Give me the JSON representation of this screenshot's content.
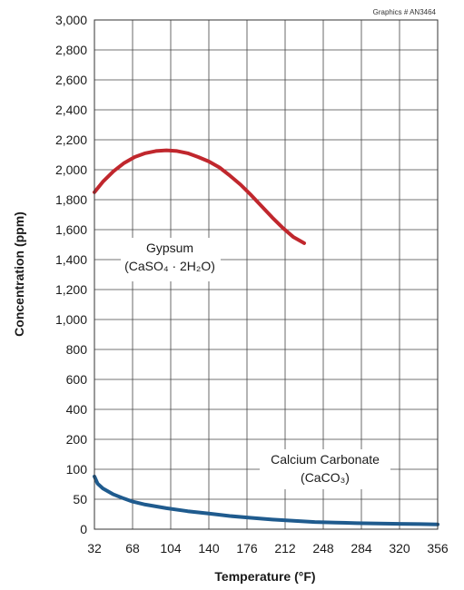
{
  "chart_data": {
    "type": "line",
    "graphic_id": "Graphics # AN3464",
    "xlabel": "Temperature (°F)",
    "ylabel": "Concentration (ppm)",
    "x_ticks": [
      32,
      68,
      104,
      140,
      176,
      212,
      248,
      284,
      320,
      356
    ],
    "y_ticks": [
      0,
      50,
      100,
      200,
      400,
      600,
      800,
      1000,
      1200,
      1400,
      1600,
      1800,
      2000,
      2200,
      2400,
      2600,
      2800,
      3000
    ],
    "y_tick_labels": [
      "0",
      "50",
      "100",
      "200",
      "400",
      "600",
      "800",
      "1,000",
      "1,200",
      "1,400",
      "1,600",
      "1,800",
      "2,000",
      "2,200",
      "2,400",
      "2,600",
      "2,800",
      "3,000"
    ],
    "xlim": [
      32,
      356
    ],
    "ylim": [
      0,
      3000
    ],
    "grid": true,
    "colors": {
      "gypsum": "#c0272d",
      "calcium_carbonate": "#1f5b8e"
    },
    "series": [
      {
        "key": "gypsum",
        "label_lines": [
          "Gypsum",
          "(CaSO₄ · 2H₂O)"
        ],
        "x": [
          32,
          40,
          50,
          60,
          70,
          80,
          90,
          100,
          110,
          120,
          130,
          140,
          150,
          160,
          170,
          180,
          190,
          200,
          210,
          220,
          230
        ],
        "y": [
          1850,
          1920,
          1990,
          2045,
          2085,
          2110,
          2125,
          2130,
          2125,
          2110,
          2085,
          2055,
          2015,
          1960,
          1900,
          1830,
          1755,
          1680,
          1610,
          1550,
          1510
        ]
      },
      {
        "key": "calcium_carbonate",
        "label_lines": [
          "Calcium Carbonate",
          "(CaCO₃)"
        ],
        "x": [
          32,
          35,
          40,
          50,
          60,
          68,
          80,
          100,
          120,
          140,
          160,
          180,
          200,
          220,
          240,
          260,
          280,
          300,
          320,
          340,
          356
        ],
        "y": [
          88,
          76,
          68,
          58,
          51,
          46,
          41,
          35,
          30,
          26,
          22,
          19,
          16,
          14,
          12,
          11,
          10,
          9.5,
          9,
          8.5,
          8
        ]
      }
    ]
  }
}
